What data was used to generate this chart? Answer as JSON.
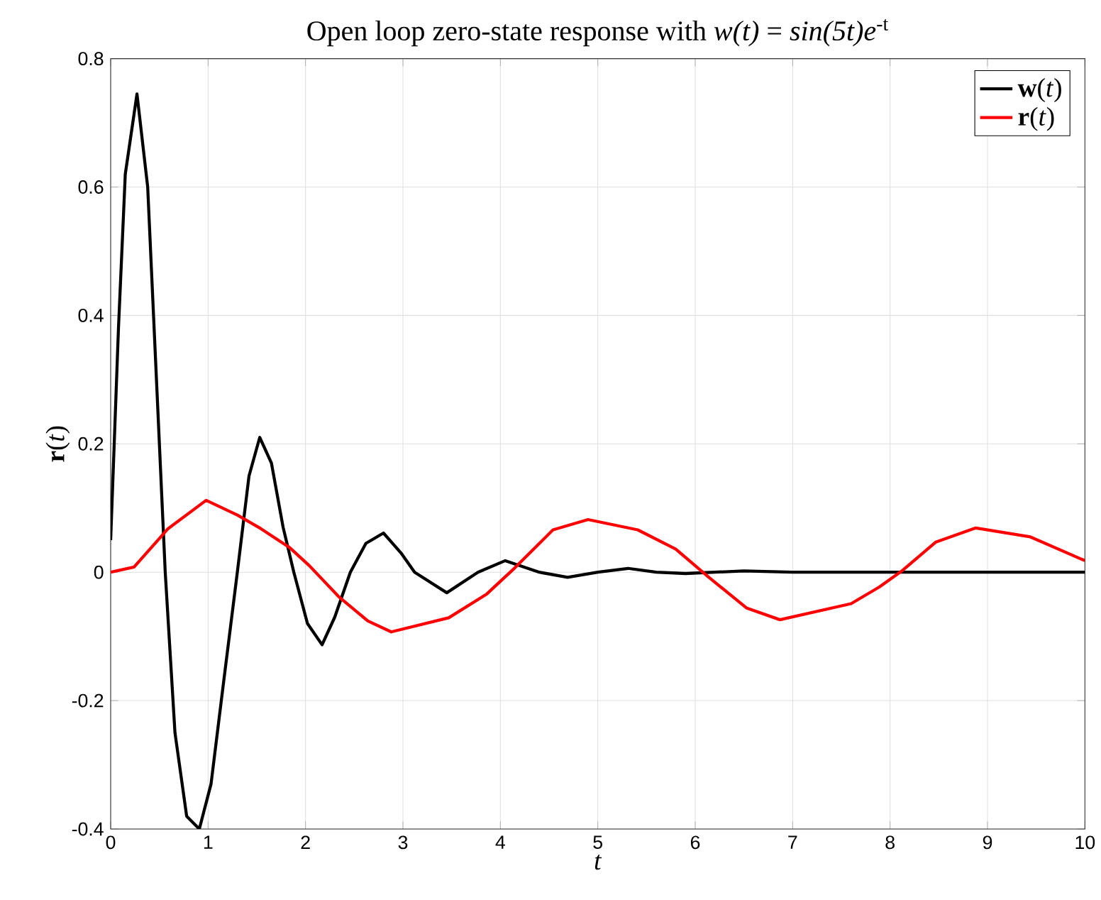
{
  "chart_data": {
    "type": "line",
    "title": "Open loop zero-state response with *w(t)* = *sin(5t)e*$^{-t}$",
    "xlabel": "*t*",
    "ylabel": "**r**(*t*)",
    "xlim": [
      0,
      10
    ],
    "ylim": [
      -0.4,
      0.8
    ],
    "xticks": [
      0,
      1,
      2,
      3,
      4,
      5,
      6,
      7,
      8,
      9,
      10
    ],
    "yticks": [
      -0.4,
      -0.2,
      0,
      0.2,
      0.4,
      0.6,
      0.8
    ],
    "grid": true,
    "legend": "top right",
    "line_style": "solid",
    "marker": "none",
    "series": [
      {
        "name": "**w**(*t*)",
        "color": "#000000",
        "x": [
          0,
          0.08,
          0.15,
          0.27,
          0.38,
          0.47,
          0.56,
          0.66,
          0.78,
          0.91,
          1.03,
          1.16,
          1.3,
          1.42,
          1.53,
          1.65,
          1.77,
          1.88,
          2.02,
          2.17,
          2.3,
          2.46,
          2.62,
          2.8,
          2.98,
          3.12,
          3.45,
          3.77,
          4.05,
          4.4,
          4.69,
          5.0,
          5.31,
          5.6,
          5.9,
          6.5,
          7,
          10
        ],
        "values": [
          0.05,
          0.38,
          0.62,
          0.745,
          0.6,
          0.3,
          0,
          -0.25,
          -0.38,
          -0.4,
          -0.33,
          -0.17,
          0,
          0.15,
          0.21,
          0.17,
          0.07,
          0,
          -0.08,
          -0.113,
          -0.07,
          0,
          0.045,
          0.061,
          0.03,
          0,
          -0.032,
          0,
          0.018,
          0,
          -0.008,
          0,
          0.006,
          0,
          -0.002,
          0.002,
          0,
          0
        ]
      },
      {
        "name": "**r**(*t*)",
        "color": "#ff0000",
        "x": [
          0,
          0.24,
          0.59,
          0.98,
          1.3,
          1.54,
          1.84,
          2.04,
          2.34,
          2.64,
          2.88,
          3.47,
          3.86,
          4.15,
          4.54,
          4.9,
          5.41,
          5.8,
          6.14,
          6.53,
          6.87,
          7.6,
          7.89,
          8.13,
          8.47,
          8.88,
          9.44,
          10
        ],
        "values": [
          0,
          0.008,
          0.068,
          0.112,
          0.089,
          0.068,
          0.038,
          0.01,
          -0.038,
          -0.076,
          -0.093,
          -0.071,
          -0.034,
          0.007,
          0.066,
          0.082,
          0.066,
          0.036,
          -0.008,
          -0.056,
          -0.074,
          -0.049,
          -0.023,
          0.003,
          0.047,
          0.069,
          0.055,
          0.018
        ]
      }
    ]
  }
}
